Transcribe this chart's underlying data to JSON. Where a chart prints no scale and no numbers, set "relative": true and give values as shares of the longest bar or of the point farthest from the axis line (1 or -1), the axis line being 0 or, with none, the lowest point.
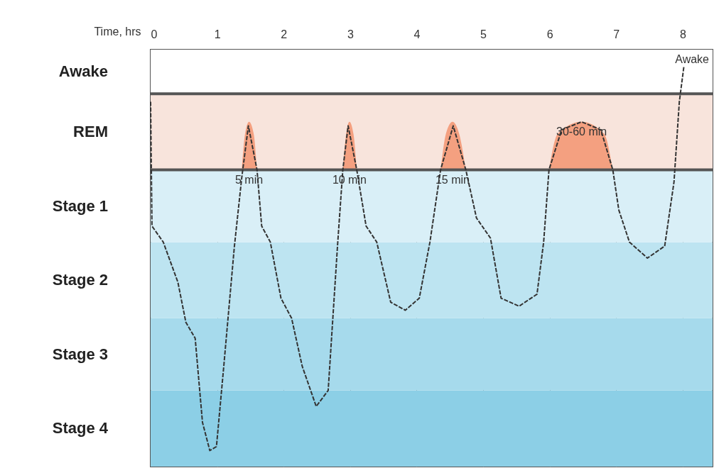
{
  "chart_data": {
    "type": "line",
    "xlabel": "Time, hrs",
    "relative": true,
    "xlim": [
      0,
      8.45
    ],
    "xticks": [
      0,
      1,
      2,
      3,
      4,
      5,
      6,
      7,
      8
    ],
    "grid": "x",
    "line_style": "dashed",
    "marker": "none",
    "series": [
      {
        "type": "line",
        "color": "#333333",
        "x": [
          0,
          0.02,
          0.19,
          0.41,
          0.53,
          0.67,
          0.78,
          0.89,
          0.99,
          1.1,
          1.26,
          1.37,
          1.47,
          1.6,
          1.67,
          1.8,
          1.96,
          2.12,
          2.28,
          2.49,
          2.67,
          2.81,
          2.89,
          2.97,
          3.1,
          3.24,
          3.4,
          3.61,
          3.83,
          4.04,
          4.2,
          4.36,
          4.55,
          4.74,
          4.9,
          5.11,
          5.27,
          5.54,
          5.81,
          5.91,
          5.99,
          6.18,
          6.48,
          6.77,
          6.95,
          7.04,
          7.2,
          7.47,
          7.73,
          7.87,
          7.95,
          8.02
        ],
        "values": [
          0.91,
          0.6,
          0.56,
          0.46,
          0.36,
          0.32,
          0.11,
          0.04,
          0.05,
          0.25,
          0.55,
          0.72,
          0.85,
          0.74,
          0.6,
          0.56,
          0.42,
          0.37,
          0.25,
          0.15,
          0.19,
          0.55,
          0.74,
          0.85,
          0.74,
          0.6,
          0.56,
          0.41,
          0.39,
          0.42,
          0.56,
          0.74,
          0.85,
          0.74,
          0.62,
          0.57,
          0.42,
          0.4,
          0.43,
          0.56,
          0.74,
          0.84,
          0.86,
          0.84,
          0.74,
          0.64,
          0.56,
          0.52,
          0.55,
          0.71,
          0.91,
          1
        ]
      },
      {
        "type": "area",
        "color": "#f4a080",
        "x": [
          1.37,
          1.42,
          1.48,
          1.55,
          1.6
        ],
        "values": [
          0.74,
          0.83,
          0.86,
          0.83,
          0.74
        ]
      },
      {
        "type": "area",
        "color": "#f4a080",
        "x": [
          2.89,
          2.94,
          2.99,
          3.05,
          3.1
        ],
        "values": [
          0.74,
          0.83,
          0.86,
          0.83,
          0.74
        ]
      },
      {
        "type": "area",
        "color": "#f4a080",
        "x": [
          4.36,
          4.44,
          4.54,
          4.64,
          4.74
        ],
        "values": [
          0.74,
          0.83,
          0.86,
          0.83,
          0.74
        ]
      },
      {
        "type": "area",
        "color": "#f4a080",
        "x": [
          5.99,
          6.12,
          6.48,
          6.82,
          6.95
        ],
        "values": [
          0.74,
          0.83,
          0.86,
          0.83,
          0.74
        ]
      }
    ],
    "bands": [
      {
        "axis": "y",
        "from": 0,
        "to": 0.19,
        "color": "#8ccfe6",
        "label": "Stage 4"
      },
      {
        "axis": "y",
        "from": 0.19,
        "to": 0.37,
        "color": "#a6daec",
        "label": "Stage 3"
      },
      {
        "axis": "y",
        "from": 0.37,
        "to": 0.56,
        "color": "#bde4f1",
        "label": "Stage 2"
      },
      {
        "axis": "y",
        "from": 0.56,
        "to": 0.74,
        "color": "#d9eff7",
        "label": "Stage 1"
      },
      {
        "axis": "y",
        "from": 0.74,
        "to": 0.93,
        "color": "#f8e4dc",
        "label": "REM"
      },
      {
        "axis": "y",
        "from": 0.93,
        "to": 1.04,
        "color": "#ffffff",
        "label": "Awake"
      }
    ],
    "ref_lines": [
      {
        "axis": "y",
        "value": 0.74,
        "color": "#555555"
      },
      {
        "axis": "y",
        "value": 0.93,
        "color": "#555555"
      }
    ],
    "annotations": [
      {
        "text": "5 min",
        "x": 1.48,
        "y": 0.74
      },
      {
        "text": "10 min",
        "x": 2.99,
        "y": 0.74
      },
      {
        "text": "15 min",
        "x": 4.54,
        "y": 0.74
      },
      {
        "text": "30-60 min",
        "x": 6.48,
        "y": 0.86
      },
      "Awake"
    ]
  }
}
